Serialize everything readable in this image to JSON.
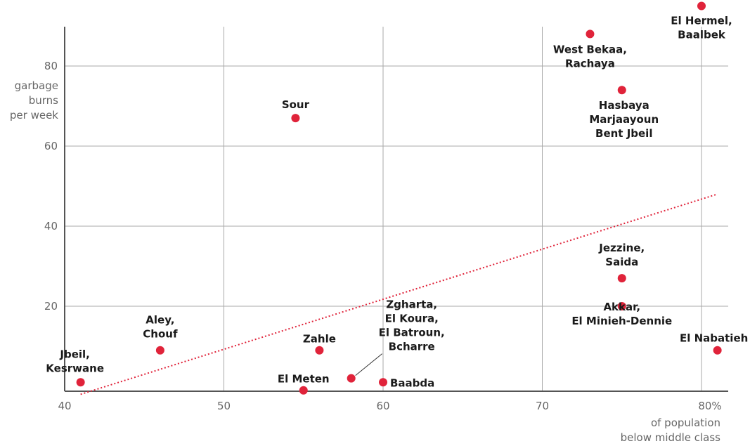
{
  "chart_data": {
    "type": "scatter",
    "xlabel": [
      "of population",
      "below middle class"
    ],
    "ylabel": [
      "garbage",
      "burns",
      "per week"
    ],
    "xlim": [
      40,
      82
    ],
    "ylim": [
      0,
      90
    ],
    "x_ticks": [
      40,
      50,
      60,
      70,
      80
    ],
    "x_tick_labels": [
      "40",
      "50",
      "60",
      "70",
      "80%"
    ],
    "y_ticks": [
      20,
      40,
      60,
      80
    ],
    "y_tick_labels": [
      "20",
      "40",
      "60",
      "80"
    ],
    "grid": true,
    "colors": {
      "point": "#e0233a",
      "trend": "#e0233a",
      "grid": "#a9a9a9",
      "text": "#1a1a1a",
      "axis_text": "#666666"
    },
    "trendline": {
      "x": [
        41,
        81
      ],
      "y": [
        -2,
        48
      ]
    },
    "points": [
      {
        "x": 41,
        "y": 1,
        "label": [
          "Jbeil,",
          "Kesrwane"
        ]
      },
      {
        "x": 46,
        "y": 9,
        "label": [
          "Aley,",
          "Chouf"
        ]
      },
      {
        "x": 54.5,
        "y": 67,
        "label": [
          "Sour"
        ]
      },
      {
        "x": 55,
        "y": -1,
        "label": [
          "El Meten"
        ]
      },
      {
        "x": 56,
        "y": 9,
        "label": [
          "Zahle"
        ]
      },
      {
        "x": 58,
        "y": 2,
        "label": [
          "Zgharta,",
          "El Koura,",
          "El Batroun,",
          "Bcharre"
        ]
      },
      {
        "x": 60,
        "y": 1,
        "label": [
          "Baabda"
        ]
      },
      {
        "x": 73,
        "y": 88,
        "label": [
          "West Bekaa,",
          "Rachaya"
        ]
      },
      {
        "x": 75,
        "y": 74,
        "label": [
          "Hasbaya",
          "Marjaayoun",
          "Bent Jbeil"
        ]
      },
      {
        "x": 75,
        "y": 27,
        "label": [
          "Jezzine,",
          "Saida"
        ]
      },
      {
        "x": 75,
        "y": 20,
        "label": [
          "Akkar,",
          "El Minieh-Dennie"
        ]
      },
      {
        "x": 80,
        "y": 95,
        "label": [
          "El Hermel,",
          "Baalbek"
        ]
      },
      {
        "x": 81,
        "y": 9,
        "label": [
          "El Nabatieh"
        ]
      }
    ]
  }
}
